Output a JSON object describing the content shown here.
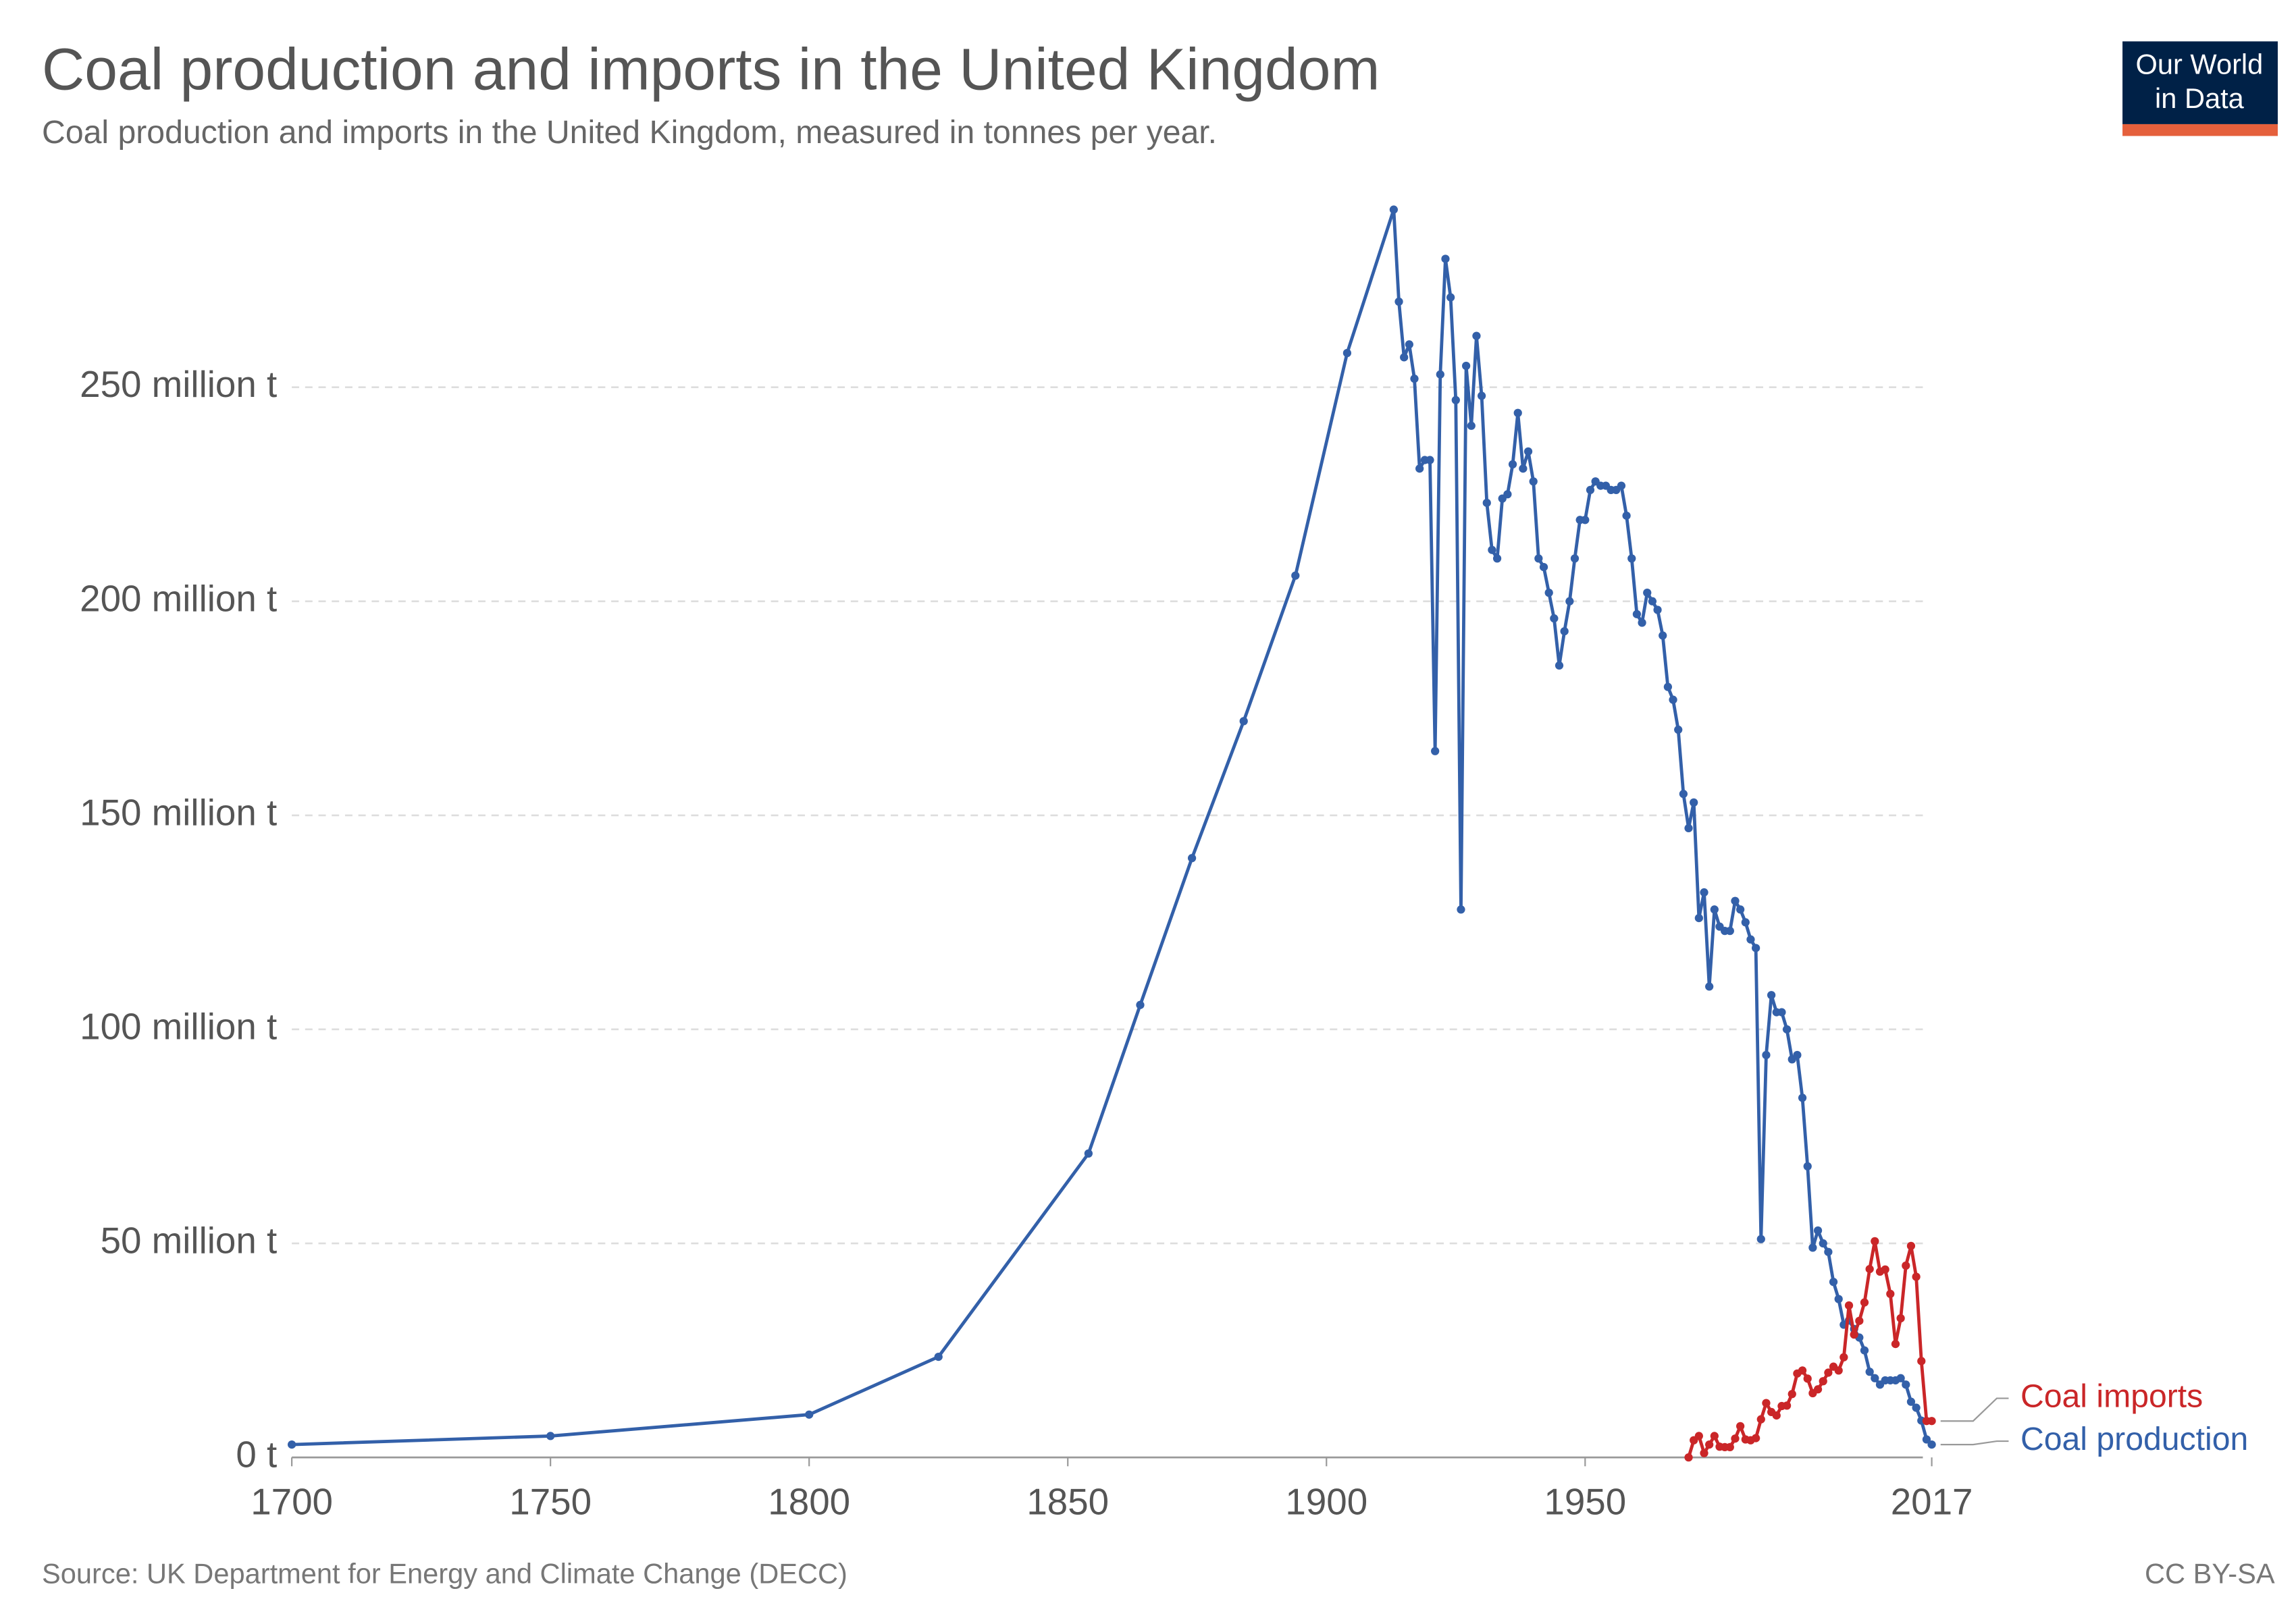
{
  "chart_data": {
    "type": "line",
    "title": "Coal production and imports in the United Kingdom",
    "subtitle": "Coal production and imports in the United Kingdom, measured in tonnes per year.",
    "source": "Source: UK Department for Energy and Climate Change (DECC)",
    "license": "CC BY-SA",
    "logo": [
      "Our World",
      "in Data"
    ],
    "xlim": [
      1700,
      2017
    ],
    "xticks": [
      1700,
      1750,
      1800,
      1850,
      1900,
      1950,
      2017
    ],
    "ylim": [
      0,
      292
    ],
    "yticks": [
      {
        "value": 0,
        "label": "0 t"
      },
      {
        "value": 50,
        "label": "50 million t"
      },
      {
        "value": 100,
        "label": "100 million t"
      },
      {
        "value": 150,
        "label": "150 million t"
      },
      {
        "value": 200,
        "label": "200 million t"
      },
      {
        "value": 250,
        "label": "250 million t"
      }
    ],
    "grid": true,
    "series": [
      {
        "name": "Coal production",
        "color": "#3360a9",
        "x": [
          1700,
          1750,
          1800,
          1825,
          1854,
          1864,
          1874,
          1884,
          1894,
          1904,
          1913,
          1914,
          1915,
          1916,
          1917,
          1918,
          1919,
          1920,
          1921,
          1922,
          1923,
          1924,
          1925,
          1926,
          1927,
          1928,
          1929,
          1930,
          1931,
          1932,
          1933,
          1934,
          1935,
          1936,
          1937,
          1938,
          1939,
          1940,
          1941,
          1942,
          1943,
          1944,
          1945,
          1946,
          1947,
          1948,
          1949,
          1950,
          1951,
          1952,
          1953,
          1954,
          1955,
          1956,
          1957,
          1958,
          1959,
          1960,
          1961,
          1962,
          1963,
          1964,
          1965,
          1966,
          1967,
          1968,
          1969,
          1970,
          1971,
          1972,
          1973,
          1974,
          1975,
          1976,
          1977,
          1978,
          1979,
          1980,
          1981,
          1982,
          1983,
          1984,
          1985,
          1986,
          1987,
          1988,
          1989,
          1990,
          1991,
          1992,
          1993,
          1994,
          1995,
          1996,
          1997,
          1998,
          1999,
          2000,
          2001,
          2002,
          2003,
          2004,
          2005,
          2006,
          2007,
          2008,
          2009,
          2010,
          2011,
          2012,
          2013,
          2014,
          2015,
          2016,
          2017
        ],
        "values": [
          3,
          5,
          10,
          23.5,
          71,
          105.7,
          140,
          172,
          206,
          258,
          291.5,
          270,
          257,
          260,
          252,
          231,
          233,
          233,
          165,
          253,
          280,
          271,
          247,
          128,
          255,
          241,
          262,
          248,
          223,
          212,
          210,
          224,
          225,
          232,
          244,
          231,
          235,
          228,
          210,
          208,
          202,
          196,
          185,
          193,
          200,
          210,
          219,
          219,
          226,
          228,
          227,
          227,
          226,
          226,
          227,
          220,
          210,
          197,
          195,
          202,
          200,
          198,
          192,
          180,
          177,
          170,
          155,
          147,
          153,
          126,
          132,
          110,
          128,
          124,
          123,
          123,
          130,
          128,
          125,
          121,
          119,
          51,
          94,
          108,
          104,
          104,
          100,
          93,
          94,
          84,
          68,
          49,
          53,
          50,
          48,
          41,
          37,
          31,
          32,
          30,
          28,
          25,
          20,
          18.5,
          17,
          18,
          18,
          18,
          18.5,
          17,
          13,
          11.6,
          8.6,
          4.2,
          3
        ]
      },
      {
        "name": "Coal imports",
        "color": "#ca2628",
        "x": [
          1970,
          1971,
          1972,
          1973,
          1974,
          1975,
          1976,
          1977,
          1978,
          1979,
          1980,
          1981,
          1982,
          1983,
          1984,
          1985,
          1986,
          1987,
          1988,
          1989,
          1990,
          1991,
          1992,
          1993,
          1994,
          1995,
          1996,
          1997,
          1998,
          1999,
          2000,
          2001,
          2002,
          2003,
          2004,
          2005,
          2006,
          2007,
          2008,
          2009,
          2010,
          2011,
          2012,
          2013,
          2014,
          2015,
          2016,
          2017
        ],
        "values": [
          0,
          4,
          5,
          1,
          3,
          5,
          2.5,
          2.4,
          2.4,
          4.4,
          7.3,
          4.2,
          4,
          4.5,
          8.9,
          12.7,
          10.6,
          9.8,
          12,
          12.1,
          14.8,
          19.6,
          20.3,
          18.4,
          15,
          15.9,
          17.8,
          19.8,
          21.2,
          20.3,
          23.4,
          35.5,
          28.7,
          31.9,
          36.2,
          44,
          50.5,
          43.4,
          43.9,
          38.2,
          26.5,
          32.5,
          44.8,
          49.4,
          42.2,
          22.5,
          8.5,
          8.5
        ]
      }
    ]
  }
}
